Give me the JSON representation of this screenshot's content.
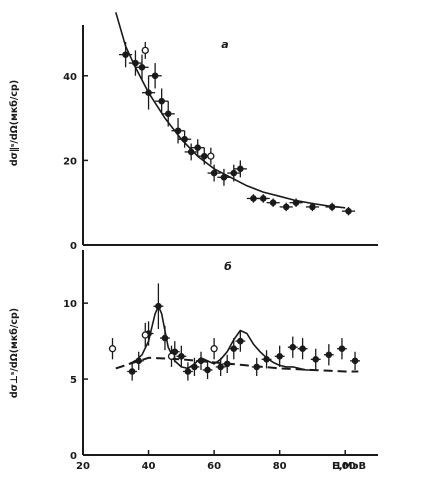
{
  "chart_data": [
    {
      "type": "scatter",
      "panel_label": "а",
      "ylabel": "dσ∥ˢ/dΩ(мкб/ср)",
      "xlim": [
        20,
        110
      ],
      "ylim": [
        0,
        52
      ],
      "yticks": [
        0,
        20,
        40
      ],
      "series": [
        {
          "marker": "filled",
          "points": [
            {
              "x": 33,
              "y": 45,
              "xerr": 2,
              "yerr": 3
            },
            {
              "x": 36,
              "y": 43,
              "xerr": 2,
              "yerr": 3
            },
            {
              "x": 38,
              "y": 42,
              "xerr": 2,
              "yerr": 3
            },
            {
              "x": 40,
              "y": 36,
              "xerr": 2,
              "yerr": 4
            },
            {
              "x": 42,
              "y": 40,
              "xerr": 2,
              "yerr": 3
            },
            {
              "x": 44,
              "y": 34,
              "xerr": 2,
              "yerr": 3
            },
            {
              "x": 46,
              "y": 31,
              "xerr": 2,
              "yerr": 3
            },
            {
              "x": 49,
              "y": 27,
              "xerr": 2,
              "yerr": 3
            },
            {
              "x": 51,
              "y": 25,
              "xerr": 2,
              "yerr": 2
            },
            {
              "x": 53,
              "y": 22,
              "xerr": 2,
              "yerr": 2
            },
            {
              "x": 55,
              "y": 23,
              "xerr": 2,
              "yerr": 2
            },
            {
              "x": 57,
              "y": 21,
              "xerr": 2,
              "yerr": 2
            },
            {
              "x": 60,
              "y": 17,
              "xerr": 2,
              "yerr": 2
            },
            {
              "x": 63,
              "y": 16,
              "xerr": 2,
              "yerr": 2
            },
            {
              "x": 66,
              "y": 17,
              "xerr": 2,
              "yerr": 2
            },
            {
              "x": 68,
              "y": 18,
              "xerr": 2,
              "yerr": 2
            },
            {
              "x": 72,
              "y": 11,
              "xerr": 2,
              "yerr": 1
            },
            {
              "x": 75,
              "y": 11,
              "xerr": 2,
              "yerr": 1
            },
            {
              "x": 78,
              "y": 10,
              "xerr": 2,
              "yerr": 1
            },
            {
              "x": 82,
              "y": 9,
              "xerr": 2,
              "yerr": 1
            },
            {
              "x": 85,
              "y": 10,
              "xerr": 2,
              "yerr": 1
            },
            {
              "x": 90,
              "y": 9,
              "xerr": 2,
              "yerr": 1
            },
            {
              "x": 96,
              "y": 9,
              "xerr": 2,
              "yerr": 1
            },
            {
              "x": 101,
              "y": 8,
              "xerr": 2,
              "yerr": 1
            }
          ]
        },
        {
          "marker": "open",
          "points": [
            {
              "x": 39,
              "y": 46,
              "xerr": 0,
              "yerr": 2
            },
            {
              "x": 59,
              "y": 21,
              "xerr": 0,
              "yerr": 2
            }
          ]
        }
      ],
      "curves": [
        {
          "style": "solid",
          "x": [
            30,
            33,
            36,
            40,
            45,
            50,
            55,
            60,
            65,
            70,
            75,
            80,
            85,
            90,
            95,
            100
          ],
          "y": [
            55,
            47,
            42,
            36,
            30,
            25,
            21,
            18,
            16,
            14,
            12.5,
            11.5,
            10.5,
            9.8,
            9.2,
            8.8
          ]
        }
      ]
    },
    {
      "type": "scatter",
      "panel_label": "б",
      "ylabel": "dσ⊥ˢ/dΩ(мкб/ср)",
      "xlabel": "E,МэВ",
      "xlim": [
        20,
        110
      ],
      "ylim": [
        0,
        13.5
      ],
      "xticks": [
        20,
        40,
        60,
        80,
        100
      ],
      "yticks": [
        0,
        5,
        10
      ],
      "series": [
        {
          "marker": "filled",
          "points": [
            {
              "x": 35,
              "y": 5.5,
              "xerr": 1.5,
              "yerr": 0.6
            },
            {
              "x": 37,
              "y": 6.2,
              "xerr": 1.5,
              "yerr": 0.6
            },
            {
              "x": 40,
              "y": 8.0,
              "xerr": 1.5,
              "yerr": 0.8
            },
            {
              "x": 43,
              "y": 9.8,
              "xerr": 1.5,
              "yerr": 1.5
            },
            {
              "x": 45,
              "y": 7.7,
              "xerr": 1.5,
              "yerr": 0.8
            },
            {
              "x": 48,
              "y": 6.8,
              "xerr": 1.5,
              "yerr": 0.7
            },
            {
              "x": 50,
              "y": 6.5,
              "xerr": 1.5,
              "yerr": 0.7
            },
            {
              "x": 52,
              "y": 5.5,
              "xerr": 1.5,
              "yerr": 0.6
            },
            {
              "x": 54,
              "y": 5.8,
              "xerr": 1.5,
              "yerr": 0.6
            },
            {
              "x": 56,
              "y": 6.2,
              "xerr": 1.5,
              "yerr": 0.6
            },
            {
              "x": 58,
              "y": 5.6,
              "xerr": 1.5,
              "yerr": 0.6
            },
            {
              "x": 62,
              "y": 5.8,
              "xerr": 1.5,
              "yerr": 0.6
            },
            {
              "x": 64,
              "y": 6.0,
              "xerr": 1.5,
              "yerr": 0.6
            },
            {
              "x": 66,
              "y": 7.0,
              "xerr": 1.5,
              "yerr": 0.7
            },
            {
              "x": 68,
              "y": 7.5,
              "xerr": 1.5,
              "yerr": 0.7
            },
            {
              "x": 73,
              "y": 5.8,
              "xerr": 1.5,
              "yerr": 0.6
            },
            {
              "x": 76,
              "y": 6.3,
              "xerr": 1.5,
              "yerr": 0.6
            },
            {
              "x": 80,
              "y": 6.5,
              "xerr": 1.5,
              "yerr": 0.7
            },
            {
              "x": 84,
              "y": 7.1,
              "xerr": 1.5,
              "yerr": 0.7
            },
            {
              "x": 87,
              "y": 7.0,
              "xerr": 1.5,
              "yerr": 0.7
            },
            {
              "x": 91,
              "y": 6.3,
              "xerr": 1.5,
              "yerr": 0.7
            },
            {
              "x": 95,
              "y": 6.6,
              "xerr": 1.5,
              "yerr": 0.7
            },
            {
              "x": 99,
              "y": 7.0,
              "xerr": 1.5,
              "yerr": 0.7
            },
            {
              "x": 103,
              "y": 6.2,
              "xerr": 1.5,
              "yerr": 0.6
            }
          ]
        },
        {
          "marker": "open",
          "points": [
            {
              "x": 29,
              "y": 7.0,
              "xerr": 0,
              "yerr": 0.7
            },
            {
              "x": 39,
              "y": 7.9,
              "xerr": 0,
              "yerr": 0.8
            },
            {
              "x": 47,
              "y": 6.5,
              "xerr": 0,
              "yerr": 0.7
            },
            {
              "x": 60,
              "y": 7.0,
              "xerr": 0,
              "yerr": 0.7
            }
          ]
        }
      ],
      "curves": [
        {
          "style": "solid",
          "x": [
            34,
            36,
            38,
            40,
            41,
            42,
            43,
            44,
            45,
            46,
            48,
            50,
            52,
            54,
            56,
            58,
            60,
            62,
            64,
            66,
            68,
            70,
            72,
            74,
            76,
            78,
            80,
            82,
            84,
            86,
            88,
            90
          ],
          "y": [
            6.0,
            6.2,
            6.6,
            7.5,
            8.4,
            9.3,
            9.8,
            9.3,
            8.2,
            7.1,
            6.2,
            5.8,
            5.7,
            6.0,
            6.4,
            6.2,
            6.0,
            6.3,
            6.8,
            7.6,
            8.2,
            8.0,
            7.3,
            6.8,
            6.4,
            6.1,
            5.9,
            5.8,
            5.8,
            5.7,
            5.6,
            5.6
          ]
        },
        {
          "style": "dashed",
          "x": [
            30,
            40,
            50,
            60,
            70,
            80,
            90,
            100,
            104
          ],
          "y": [
            5.7,
            6.4,
            6.3,
            6.1,
            5.9,
            5.7,
            5.6,
            5.5,
            5.5
          ]
        }
      ]
    }
  ]
}
